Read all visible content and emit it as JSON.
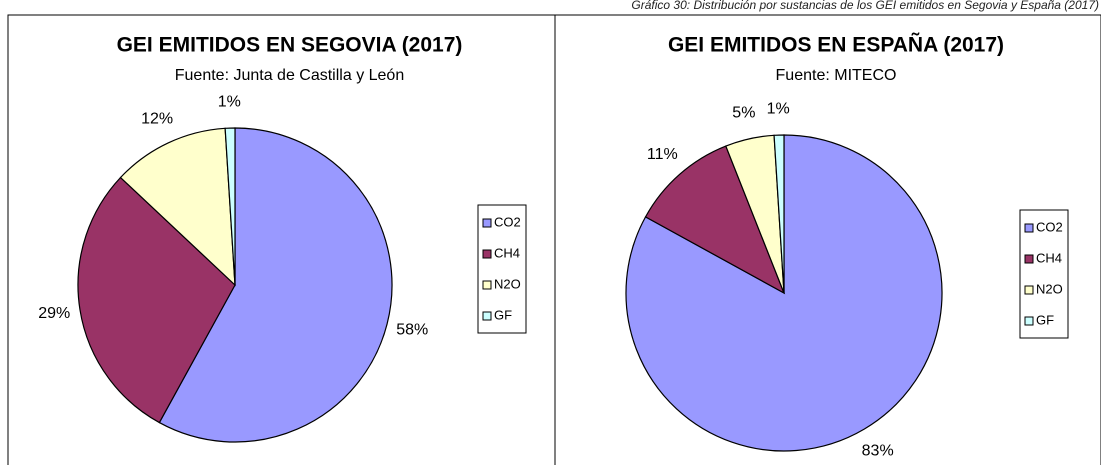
{
  "caption": "Gráfico 30: Distribución por sustancias de los GEI emitidos en Segovia y España (2017)",
  "chart_data": [
    {
      "type": "pie",
      "title": "GEI EMITIDOS EN SEGOVIA (2017)",
      "subtitle": "Fuente: Junta de Castilla y León",
      "categories": [
        "CO2",
        "CH4",
        "N2O",
        "GF"
      ],
      "values": [
        58,
        29,
        12,
        1
      ],
      "value_labels": [
        "58%",
        "29%",
        "12%",
        "1%"
      ],
      "colors": [
        "#9999ff",
        "#993366",
        "#ffffcc",
        "#ccffff"
      ],
      "legend": "right"
    },
    {
      "type": "pie",
      "title": "GEI EMITIDOS EN ESPAÑA (2017)",
      "subtitle": "Fuente: MITECO",
      "categories": [
        "CO2",
        "CH4",
        "N2O",
        "GF"
      ],
      "values": [
        83,
        11,
        5,
        1
      ],
      "value_labels": [
        "83%",
        "11%",
        "5%",
        "1%"
      ],
      "colors": [
        "#9999ff",
        "#993366",
        "#ffffcc",
        "#ccffff"
      ],
      "legend": "right"
    }
  ]
}
